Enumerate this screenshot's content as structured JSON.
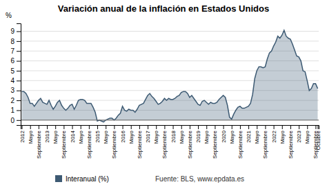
{
  "chart_data": {
    "type": "area",
    "title": "Variación anual de la inflación en Estados Unidos",
    "y_label": "%",
    "annotations": [
      "Fuente: BLS, www.epdata.es"
    ],
    "categories": [
      "2012",
      null,
      null,
      null,
      "Mayo",
      null,
      null,
      null,
      "Septiembre",
      null,
      null,
      null,
      "2013",
      null,
      null,
      null,
      "Mayo",
      null,
      null,
      null,
      "Septiembre",
      null,
      null,
      null,
      "2014",
      null,
      null,
      null,
      "Mayo",
      null,
      null,
      null,
      "Septiembre",
      null,
      null,
      null,
      "2015",
      null,
      null,
      null,
      "Mayo",
      null,
      null,
      null,
      "Septiembre",
      null,
      null,
      null,
      "2016",
      null,
      null,
      null,
      "Mayo",
      null,
      null,
      null,
      "Septiembre",
      null,
      null,
      null,
      "2017",
      null,
      null,
      null,
      "Mayo",
      null,
      null,
      null,
      "Septiembre",
      null,
      null,
      null,
      "2018",
      null,
      null,
      null,
      "Mayo",
      null,
      null,
      null,
      "Septiembre",
      null,
      null,
      null,
      "2019",
      null,
      null,
      null,
      "Mayo",
      null,
      null,
      null,
      "Septiembre",
      null,
      null,
      null,
      "2020",
      null,
      null,
      null,
      "Mayo",
      null,
      null,
      null,
      "Septiembre",
      null,
      null,
      null,
      "2021",
      null,
      null,
      null,
      "Mayo",
      null,
      null,
      null,
      "Septiembre",
      null,
      null,
      null,
      "2022",
      null,
      null,
      null,
      "Mayo",
      null,
      null,
      null,
      "Septiembre",
      null,
      null,
      null,
      "2023",
      null,
      null,
      null,
      "Mayo",
      null,
      null,
      null,
      "Septiembre",
      "Octubre"
    ],
    "series": [
      {
        "name": "Interanual (%)",
        "color": "#3d5a73",
        "values": [
          2.9,
          2.9,
          2.7,
          2.3,
          1.7,
          1.7,
          1.4,
          1.7,
          2.0,
          2.2,
          1.8,
          1.7,
          1.6,
          2.0,
          1.5,
          1.1,
          1.4,
          1.8,
          2.0,
          1.5,
          1.2,
          1.0,
          1.2,
          1.5,
          1.6,
          1.1,
          1.5,
          2.0,
          2.1,
          2.1,
          2.0,
          1.7,
          1.7,
          1.7,
          1.3,
          0.8,
          -0.1,
          0.0,
          -0.1,
          -0.2,
          0.0,
          0.1,
          0.2,
          0.2,
          0.0,
          0.2,
          0.5,
          0.7,
          1.4,
          1.0,
          0.9,
          1.1,
          1.0,
          1.0,
          0.8,
          1.1,
          1.5,
          1.6,
          1.7,
          2.1,
          2.5,
          2.7,
          2.4,
          2.2,
          1.9,
          1.6,
          1.7,
          1.9,
          2.2,
          2.0,
          2.2,
          2.1,
          2.1,
          2.2,
          2.4,
          2.5,
          2.8,
          2.9,
          2.9,
          2.7,
          2.3,
          2.5,
          2.2,
          1.9,
          1.6,
          1.5,
          1.9,
          2.0,
          1.8,
          1.6,
          1.8,
          1.7,
          1.7,
          1.8,
          2.1,
          2.3,
          2.5,
          2.3,
          1.5,
          0.3,
          0.1,
          0.6,
          1.0,
          1.3,
          1.4,
          1.2,
          1.2,
          1.3,
          1.4,
          1.7,
          2.6,
          4.2,
          5.0,
          5.4,
          5.4,
          5.3,
          5.4,
          6.2,
          6.8,
          7.0,
          7.5,
          7.9,
          8.5,
          8.3,
          8.6,
          9.1,
          8.5,
          8.3,
          8.2,
          7.7,
          7.1,
          6.5,
          6.4,
          6.0,
          5.0,
          4.9,
          4.0,
          3.0,
          3.2,
          3.7,
          3.7,
          3.2
        ]
      }
    ],
    "ylim": [
      -0.5,
      9.8
    ],
    "yticks": [
      0,
      1,
      2,
      3,
      4,
      5,
      6,
      7,
      8,
      9
    ],
    "grid": true,
    "legend": "bottom"
  }
}
